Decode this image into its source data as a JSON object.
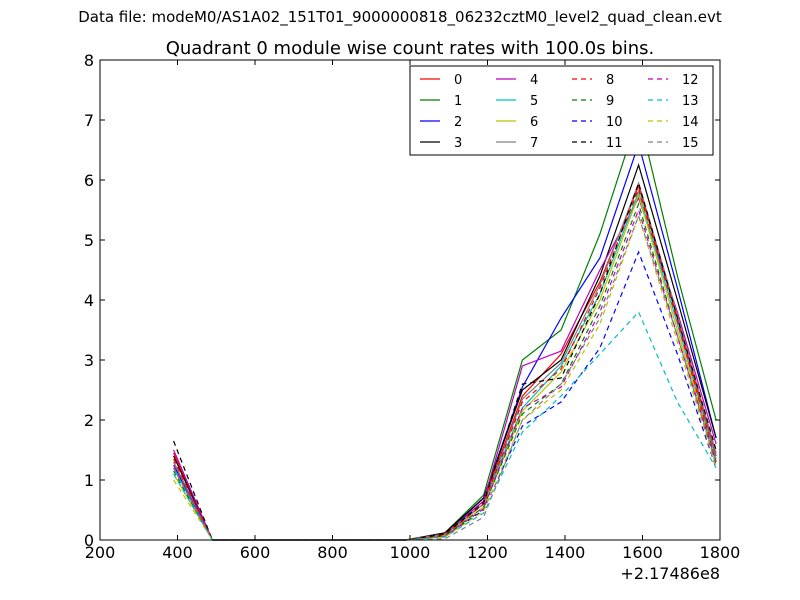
{
  "suptitle": "Data file: modeM0/AS1A02_151T01_9000000818_06232cztM0_level2_quad_clean.evt",
  "chart_data": {
    "type": "line",
    "title": "Quadrant 0 module wise count rates with 100.0s bins.",
    "xlabel": "",
    "ylabel": "",
    "x_offset_label": "+2.17486e8",
    "xlim": [
      200,
      1800
    ],
    "ylim": [
      0,
      8
    ],
    "xticks": [
      200,
      400,
      600,
      800,
      1000,
      1200,
      1400,
      1600,
      1800
    ],
    "yticks": [
      0,
      1,
      2,
      3,
      4,
      5,
      6,
      7,
      8
    ],
    "grid": false,
    "legend_position": "top-right",
    "x": [
      390,
      490,
      590,
      690,
      790,
      890,
      990,
      1090,
      1190,
      1290,
      1390,
      1490,
      1590,
      1690,
      1790
    ],
    "series": [
      {
        "name": "0",
        "color": "#ff0000",
        "dashed": false,
        "values": [
          1.45,
          0,
          0,
          0,
          0,
          0,
          0,
          0.1,
          0.65,
          2.4,
          3.1,
          4.3,
          5.9,
          3.7,
          1.4
        ]
      },
      {
        "name": "1",
        "color": "#008000",
        "dashed": false,
        "values": [
          1.3,
          0,
          0,
          0,
          0,
          0,
          0,
          0.12,
          0.75,
          3.0,
          3.5,
          5.1,
          7.1,
          4.4,
          2.0
        ]
      },
      {
        "name": "2",
        "color": "#0000ff",
        "dashed": false,
        "values": [
          1.25,
          0,
          0,
          0,
          0,
          0,
          0,
          0.1,
          0.7,
          2.55,
          3.7,
          4.7,
          6.6,
          4.2,
          1.7
        ]
      },
      {
        "name": "3",
        "color": "#000000",
        "dashed": false,
        "values": [
          1.4,
          0,
          0,
          0,
          0,
          0,
          0,
          0.12,
          0.7,
          2.5,
          3.0,
          4.4,
          6.25,
          4.0,
          1.7
        ]
      },
      {
        "name": "4",
        "color": "#bf00bf",
        "dashed": false,
        "values": [
          1.5,
          0,
          0,
          0,
          0,
          0,
          0,
          0.1,
          0.65,
          2.9,
          3.15,
          4.5,
          5.7,
          3.8,
          1.6
        ]
      },
      {
        "name": "5",
        "color": "#00bfbf",
        "dashed": false,
        "values": [
          1.2,
          0,
          0,
          0,
          0,
          0,
          0,
          0.08,
          0.6,
          2.2,
          2.9,
          4.1,
          5.8,
          3.6,
          1.35
        ]
      },
      {
        "name": "6",
        "color": "#bfbf00",
        "dashed": false,
        "values": [
          1.1,
          0,
          0,
          0,
          0,
          0,
          0,
          0.08,
          0.55,
          2.15,
          2.8,
          4.0,
          5.75,
          3.5,
          1.3
        ]
      },
      {
        "name": "7",
        "color": "#808080",
        "dashed": false,
        "values": [
          1.3,
          0,
          0,
          0,
          0,
          0,
          0,
          0.1,
          0.6,
          2.35,
          2.95,
          4.25,
          5.95,
          3.75,
          1.45
        ]
      },
      {
        "name": "8",
        "color": "#ff0000",
        "dashed": true,
        "values": [
          1.35,
          0,
          0,
          0,
          0,
          0,
          0,
          0.08,
          0.6,
          2.3,
          2.85,
          4.2,
          5.85,
          3.65,
          1.3
        ]
      },
      {
        "name": "9",
        "color": "#008000",
        "dashed": true,
        "values": [
          1.15,
          0,
          0,
          0,
          0,
          0,
          0,
          0.06,
          0.55,
          2.1,
          2.6,
          3.9,
          5.6,
          3.4,
          1.25
        ]
      },
      {
        "name": "10",
        "color": "#0000ff",
        "dashed": true,
        "values": [
          1.2,
          0,
          0,
          0,
          0,
          0,
          0,
          0.06,
          0.5,
          1.9,
          2.3,
          3.2,
          4.8,
          3.1,
          1.2
        ]
      },
      {
        "name": "11",
        "color": "#000000",
        "dashed": true,
        "values": [
          1.65,
          0,
          0,
          0,
          0,
          0,
          0,
          0.1,
          0.62,
          2.6,
          2.7,
          4.1,
          5.95,
          3.7,
          1.5
        ]
      },
      {
        "name": "12",
        "color": "#bf00bf",
        "dashed": true,
        "values": [
          1.25,
          0,
          0,
          0,
          0,
          0,
          0,
          0.06,
          0.52,
          2.2,
          2.55,
          3.8,
          5.5,
          3.4,
          1.3
        ]
      },
      {
        "name": "13",
        "color": "#00bfbf",
        "dashed": true,
        "values": [
          1.1,
          0,
          0,
          0,
          0,
          0,
          0,
          0.05,
          0.45,
          1.8,
          2.4,
          3.1,
          3.8,
          2.3,
          1.2
        ]
      },
      {
        "name": "14",
        "color": "#bfbf00",
        "dashed": true,
        "values": [
          1.0,
          0,
          0,
          0,
          0,
          0,
          0,
          0.05,
          0.48,
          2.0,
          2.5,
          3.6,
          5.4,
          3.3,
          1.2
        ]
      },
      {
        "name": "15",
        "color": "#808080",
        "dashed": true,
        "values": [
          1.2,
          0,
          0,
          0,
          0,
          0,
          0,
          0.02,
          0.38,
          2.0,
          2.6,
          3.7,
          5.4,
          3.4,
          1.25
        ]
      }
    ]
  }
}
